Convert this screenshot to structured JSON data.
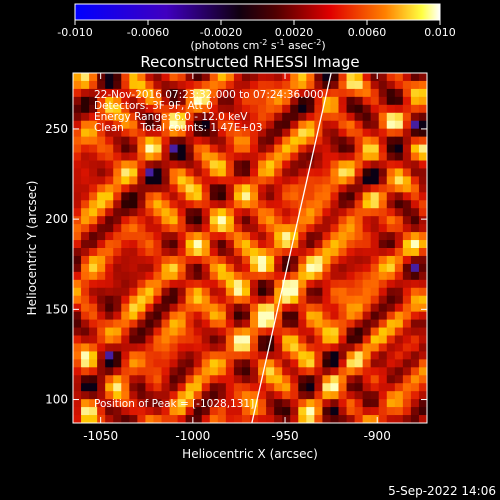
{
  "colorbar": {
    "ticks": [
      "-0.010",
      "-0.0060",
      "-0.0020",
      "0.0020",
      "0.0060",
      "0.010"
    ],
    "tick_values": [
      -0.01,
      -0.006,
      -0.002,
      0.002,
      0.006,
      0.01
    ],
    "range": [
      -0.01,
      0.01
    ],
    "units": "(photons cm",
    "units_exp1": "-2",
    "units_mid": " s",
    "units_exp2": "-1",
    "units_tail": " asec",
    "units_exp3": "-2",
    "units_end": ")"
  },
  "header": {
    "title": "Reconstructed RHESSI Image"
  },
  "info": {
    "line1": "22-Nov-2016 07:23:32.000 to 07:24:36.000",
    "line2": "Detectors: 3F 9F, Att 0",
    "line3": "Energy Range: 6.0 - 12.0 keV",
    "line4": "Clean     Total counts: 1.47E+03",
    "peak": "Position of Peak = [-1028,131]"
  },
  "footer": {
    "timestamp": "5-Sep-2022 14:06"
  },
  "chart_data": {
    "type": "heatmap",
    "title": "Reconstructed RHESSI Image",
    "xlabel": "Heliocentric X (arcsec)",
    "ylabel": "Heliocentric Y (arcsec)",
    "xlim": [
      -1065,
      -873
    ],
    "ylim": [
      87,
      281
    ],
    "xticks": [
      -1050,
      -1000,
      -950,
      -900
    ],
    "xtick_labels": [
      "-1050",
      "-1000",
      "-950",
      "-900"
    ],
    "yticks": [
      100,
      150,
      200,
      250
    ],
    "ytick_labels": [
      "100",
      "150",
      "200",
      "250"
    ],
    "colormap": [
      "#0000ff",
      "#000000",
      "#ff0000",
      "#ff8000",
      "#ffff00",
      "#ffffff"
    ],
    "limb": [
      [
        -968,
        87
      ],
      [
        -925,
        281
      ]
    ],
    "peak": [
      -1028,
      131
    ],
    "grid": false
  }
}
